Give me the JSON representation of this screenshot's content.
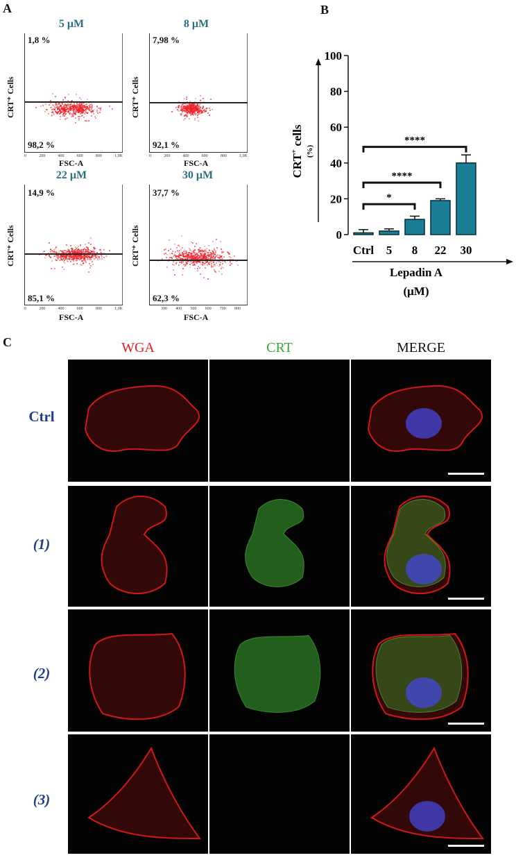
{
  "panel_labels": {
    "a": "A",
    "b": "B",
    "c": "C"
  },
  "facs": {
    "xlabel": "FSC-A",
    "ylabel": "CRT⁺ Cells",
    "plots": [
      {
        "title": "5 μM",
        "upper": "1,8 %",
        "lower": "98,2 %",
        "x_ticks": [
          "0",
          "200",
          "400",
          "600",
          "800",
          "1,0K"
        ]
      },
      {
        "title": "8 μM",
        "upper": "7,98 %",
        "lower": "92,1 %",
        "x_ticks": [
          "0",
          "200",
          "400",
          "600",
          "800",
          "1,0K"
        ]
      },
      {
        "title": "22 μM",
        "upper": "14,9 %",
        "lower": "85,1 %",
        "x_ticks": [
          "0",
          "200",
          "400",
          "600",
          "800",
          "1,0K"
        ]
      },
      {
        "title": "30 μM",
        "upper": "37,7 %",
        "lower": "62,3 %",
        "x_ticks": [
          "300",
          "400",
          "500",
          "600",
          "700",
          "800"
        ]
      }
    ]
  },
  "chart_data": {
    "type": "bar",
    "categories": [
      "Ctrl",
      "5",
      "8",
      "22",
      "30"
    ],
    "values": [
      1.0,
      2.0,
      8.5,
      19.0,
      40.0
    ],
    "errors": [
      1.8,
      1.2,
      1.8,
      1.0,
      4.5
    ],
    "ylabel_main": "CRT",
    "ylabel_sup": "+",
    "ylabel_rest": " cells",
    "ylabel_unit": "(%)",
    "xlabel_line1": "Lepadin A",
    "xlabel_line2": "(μM)",
    "y_ticks": [
      "0",
      "20",
      "40",
      "60",
      "80",
      "100"
    ],
    "ylim": [
      0,
      100
    ],
    "bar_color": "#1a7f96",
    "significance": [
      {
        "from": "Ctrl",
        "to": "8",
        "label": "*"
      },
      {
        "from": "Ctrl",
        "to": "22",
        "label": "****"
      },
      {
        "from": "Ctrl",
        "to": "30",
        "label": "****"
      }
    ]
  },
  "microscopy": {
    "columns": [
      {
        "label": "WGA",
        "color": "#e31b23"
      },
      {
        "label": "CRT",
        "color": "#3aa335"
      },
      {
        "label": "MERGE",
        "color": "#111111"
      }
    ],
    "rows": [
      {
        "label": "Ctrl"
      },
      {
        "label": "(1)"
      },
      {
        "label": "(2)"
      },
      {
        "label": "(3)"
      }
    ]
  }
}
